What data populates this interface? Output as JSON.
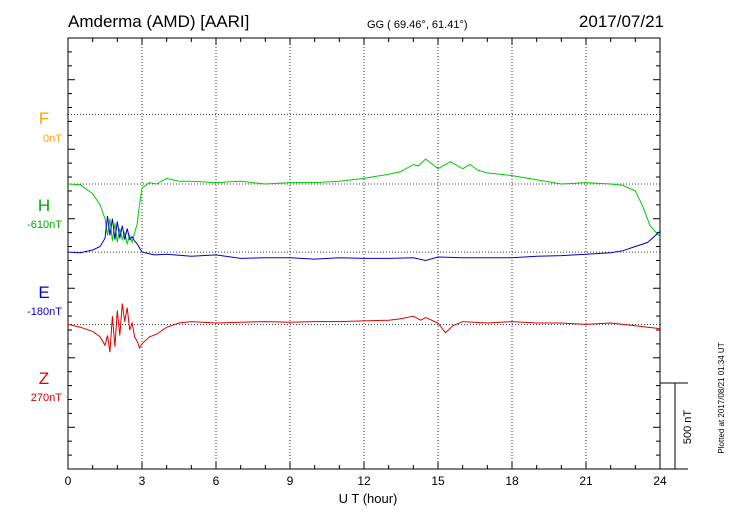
{
  "header": {
    "station": "Amderma (AMD)  [AARI]",
    "coords": "GG ( 69.46°,  61.41°)",
    "date": "2017/07/21"
  },
  "plotted_note": "Plotted at 2017/08/21 01:34 UT",
  "colors": {
    "F": "#ffa500",
    "H": "#00cc00",
    "E": "#0000cc",
    "Z": "#dd0000",
    "axis": "#000000"
  },
  "chart_data": {
    "type": "line",
    "xlabel": "U T (hour)",
    "xlim": [
      0,
      24
    ],
    "xticks": [
      "0",
      "3",
      "6",
      "9",
      "12",
      "15",
      "18",
      "21",
      "24"
    ],
    "ylim": [
      -800,
      2300
    ],
    "scale_bar": {
      "label": "500 nT",
      "value": 500
    },
    "series": [
      {
        "name": "F",
        "baseline_label": "0nT",
        "baseline": 1750,
        "values": []
      },
      {
        "name": "H",
        "baseline_label": "-610nT",
        "baseline": 1250,
        "x": [
          0,
          0.5,
          1,
          1.3,
          1.5,
          1.6,
          1.7,
          1.8,
          1.9,
          2.0,
          2.1,
          2.2,
          2.3,
          2.4,
          2.5,
          2.6,
          2.7,
          2.8,
          2.9,
          3,
          3.3,
          3.6,
          4,
          4.5,
          5,
          6,
          7,
          8,
          9,
          10,
          11,
          12,
          12.5,
          13,
          13.5,
          14,
          14.2,
          14.5,
          15,
          15.5,
          16,
          16.3,
          16.6,
          17,
          18,
          19,
          20,
          21,
          22,
          22.5,
          23,
          23.3,
          23.6,
          24
        ],
        "values": [
          1250,
          1245,
          1180,
          1100,
          1000,
          880,
          1000,
          840,
          970,
          830,
          930,
          850,
          900,
          820,
          880,
          830,
          900,
          960,
          1100,
          1220,
          1260,
          1250,
          1290,
          1270,
          1270,
          1260,
          1270,
          1250,
          1260,
          1260,
          1270,
          1290,
          1305,
          1320,
          1340,
          1390,
          1380,
          1430,
          1360,
          1410,
          1360,
          1390,
          1350,
          1330,
          1310,
          1280,
          1250,
          1260,
          1250,
          1240,
          1200,
          1090,
          950,
          870
        ]
      },
      {
        "name": "E",
        "baseline_label": "-180nT",
        "baseline": 760,
        "x": [
          0,
          0.5,
          1,
          1.3,
          1.5,
          1.6,
          1.7,
          1.8,
          1.9,
          2.0,
          2.1,
          2.2,
          2.3,
          2.4,
          2.5,
          2.6,
          2.7,
          2.8,
          2.9,
          3,
          3.5,
          4,
          5,
          6,
          7,
          8,
          9,
          10,
          11,
          12,
          13,
          14,
          14.5,
          15,
          16,
          17,
          18,
          19,
          20,
          21,
          22,
          22.5,
          23,
          23.5,
          24
        ],
        "values": [
          760,
          755,
          775,
          800,
          860,
          1020,
          880,
          1000,
          850,
          980,
          860,
          950,
          850,
          930,
          850,
          870,
          840,
          820,
          790,
          760,
          740,
          745,
          730,
          740,
          715,
          720,
          720,
          710,
          720,
          715,
          715,
          720,
          700,
          725,
          720,
          720,
          720,
          730,
          735,
          745,
          755,
          770,
          800,
          830,
          910
        ]
      },
      {
        "name": "Z",
        "baseline_label": "270nT",
        "baseline": 240,
        "x": [
          0,
          0.5,
          1,
          1.3,
          1.5,
          1.6,
          1.7,
          1.8,
          1.9,
          2.0,
          2.1,
          2.2,
          2.3,
          2.4,
          2.5,
          2.6,
          2.7,
          2.8,
          2.9,
          3,
          3.3,
          3.6,
          4,
          4.5,
          5,
          6,
          7,
          8,
          9,
          10,
          11,
          12,
          13,
          13.5,
          14,
          14.3,
          14.5,
          15,
          15.3,
          15.6,
          16,
          17,
          18,
          19,
          20,
          21,
          22,
          22.5,
          23,
          23.5,
          24
        ],
        "values": [
          240,
          220,
          190,
          150,
          90,
          160,
          40,
          300,
          80,
          340,
          160,
          390,
          260,
          360,
          200,
          250,
          150,
          120,
          70,
          100,
          150,
          170,
          220,
          250,
          260,
          250,
          255,
          260,
          255,
          260,
          260,
          265,
          270,
          280,
          300,
          270,
          290,
          250,
          180,
          230,
          260,
          250,
          260,
          250,
          250,
          240,
          250,
          240,
          230,
          220,
          210
        ]
      }
    ]
  }
}
